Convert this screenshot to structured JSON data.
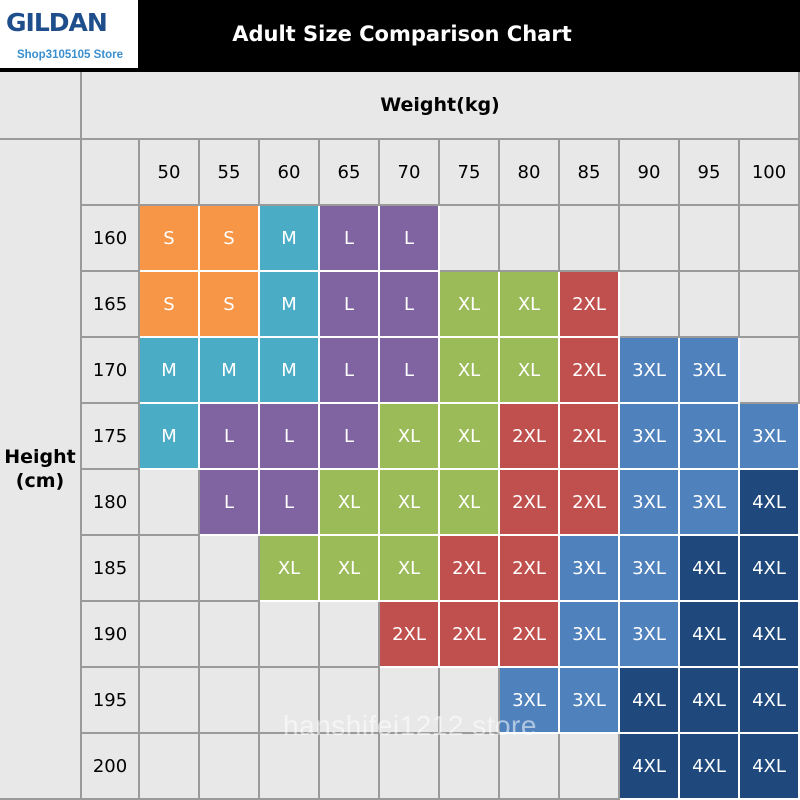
{
  "logo": {
    "brand": "GILDAN",
    "store": "Shop3105105 Store"
  },
  "chart_data": {
    "type": "table",
    "title": "Adult Size Comparison Chart",
    "xlabel": "Weight(kg)",
    "ylabel_line1": "Height",
    "ylabel_line2": "(cm)",
    "weights": [
      "50",
      "55",
      "60",
      "65",
      "70",
      "75",
      "80",
      "85",
      "90",
      "95",
      "100"
    ],
    "heights": [
      "160",
      "165",
      "170",
      "175",
      "180",
      "185",
      "190",
      "195",
      "200"
    ],
    "grid": [
      [
        "S",
        "S",
        "M",
        "L",
        "L",
        "",
        "",
        "",
        "",
        "",
        ""
      ],
      [
        "S",
        "S",
        "M",
        "L",
        "L",
        "XL",
        "XL",
        "2XL",
        "",
        "",
        ""
      ],
      [
        "M",
        "M",
        "M",
        "L",
        "L",
        "XL",
        "XL",
        "2XL",
        "3XL",
        "3XL",
        ""
      ],
      [
        "M",
        "L",
        "L",
        "L",
        "XL",
        "XL",
        "2XL",
        "2XL",
        "3XL",
        "3XL",
        "3XL"
      ],
      [
        "",
        "L",
        "L",
        "XL",
        "XL",
        "XL",
        "2XL",
        "2XL",
        "3XL",
        "3XL",
        "4XL"
      ],
      [
        "",
        "",
        "XL",
        "XL",
        "XL",
        "2XL",
        "2XL",
        "3XL",
        "3XL",
        "4XL",
        "4XL"
      ],
      [
        "",
        "",
        "",
        "",
        "2XL",
        "2XL",
        "2XL",
        "3XL",
        "3XL",
        "4XL",
        "4XL"
      ],
      [
        "",
        "",
        "",
        "",
        "",
        "",
        "3XL",
        "3XL",
        "4XL",
        "4XL",
        "4XL"
      ],
      [
        "",
        "",
        "",
        "",
        "",
        "",
        "",
        "",
        "4XL",
        "4XL",
        "4XL"
      ]
    ],
    "size_colors": {
      "S": "#f79646",
      "M": "#4bacc6",
      "L": "#8064a2",
      "XL": "#9bbb59",
      "2XL": "#c0504d",
      "3XL": "#4f81bd",
      "4XL": "#1f497d"
    }
  },
  "watermark": "hanshifei1212 store"
}
